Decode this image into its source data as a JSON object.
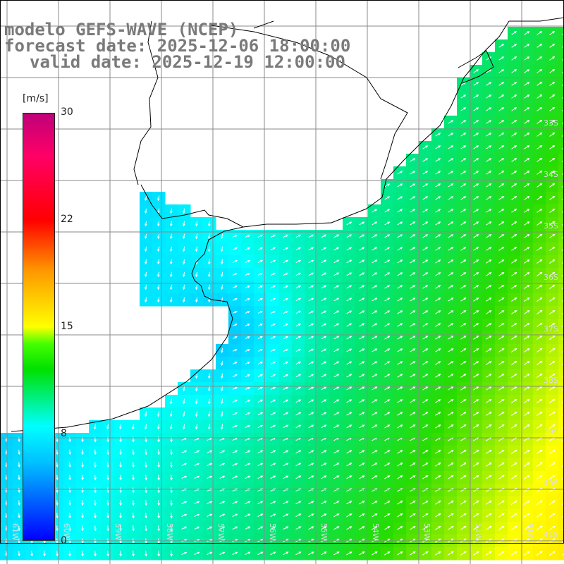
{
  "title": {
    "line1": "modelo GEFS-WAVE (NCEP)",
    "line2": "forecast date: 2025-12-06 18:00:00",
    "line3": "valid date: 2025-12-19 12:00:00"
  },
  "colorbar": {
    "unit": "[m/s]",
    "ticks": [
      "30",
      "22",
      "15",
      "8",
      "0"
    ],
    "range": [
      0,
      30
    ],
    "colors": [
      "#0000ff",
      "#00bfff",
      "#00ffff",
      "#00e000",
      "#ffff00",
      "#ff9900",
      "#ff0000",
      "#c0007a"
    ]
  },
  "map": {
    "lat_labels": [
      "33S",
      "34S",
      "35S",
      "36S",
      "37S",
      "38S",
      "39S",
      "40S",
      "41S"
    ],
    "lon_labels": [
      "61W",
      "60W",
      "59W",
      "58W",
      "57W",
      "56W",
      "55W",
      "54W",
      "53W",
      "52W",
      "51W"
    ],
    "land_color": "#ffffff",
    "grid_color": "#8a8a8a",
    "coast_color": "#000000",
    "arrow_color": "#ffffff"
  }
}
